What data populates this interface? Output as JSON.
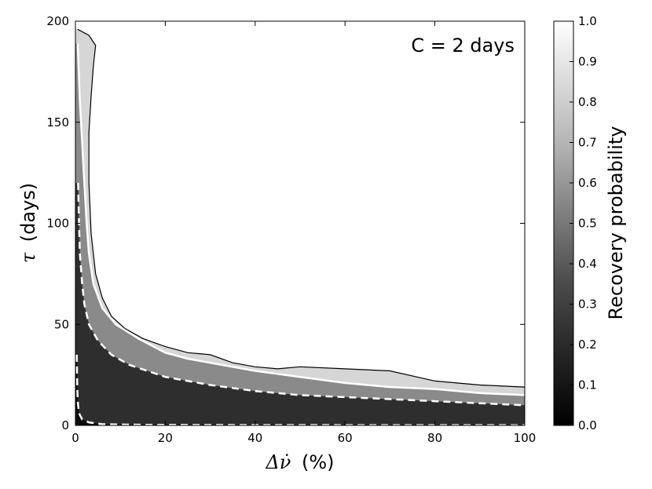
{
  "chart_data": {
    "type": "heatmap",
    "annotation": "C = 2 days",
    "xlabel_symbol": "Δν̇",
    "xlabel_unit": "(%)",
    "ylabel_symbol": "τ",
    "ylabel_unit": "(days)",
    "xlim": [
      0,
      100
    ],
    "ylim": [
      0,
      200
    ],
    "x_ticks": [
      "0",
      "20",
      "40",
      "60",
      "80",
      "100"
    ],
    "y_ticks": [
      "0",
      "50",
      "100",
      "150",
      "200"
    ],
    "colorbar": {
      "label": "Recovery probability",
      "range": [
        0.0,
        1.0
      ],
      "ticks": [
        "0.0",
        "0.1",
        "0.2",
        "0.3",
        "0.4",
        "0.5",
        "0.6",
        "0.7",
        "0.8",
        "0.9",
        "1.0"
      ],
      "colors": [
        "#000000",
        "#ffffff"
      ]
    },
    "contours": [
      {
        "level": 0.9,
        "style": "solid",
        "color": "#000000",
        "points": [
          [
            0.5,
            196
          ],
          [
            3,
            193
          ],
          [
            4.5,
            188
          ],
          [
            4,
            178
          ],
          [
            3.5,
            163
          ],
          [
            3,
            145
          ],
          [
            3,
            120
          ],
          [
            3.5,
            95
          ],
          [
            4.5,
            75
          ],
          [
            6,
            63
          ],
          [
            8,
            54
          ],
          [
            11,
            48
          ],
          [
            15,
            43
          ],
          [
            20,
            39
          ],
          [
            25,
            36
          ],
          [
            30,
            35
          ],
          [
            35,
            31
          ],
          [
            40,
            29
          ],
          [
            45,
            28
          ],
          [
            50,
            29
          ],
          [
            60,
            28
          ],
          [
            70,
            27
          ],
          [
            80,
            22
          ],
          [
            90,
            20
          ],
          [
            100,
            19
          ]
        ]
      },
      {
        "level": 0.8,
        "style": "solid",
        "color": "#ffffff",
        "points": [
          [
            0.5,
            189
          ],
          [
            1,
            160
          ],
          [
            1.5,
            140
          ],
          [
            2,
            120
          ],
          [
            2.5,
            100
          ],
          [
            3,
            85
          ],
          [
            4,
            70
          ],
          [
            6,
            58
          ],
          [
            9,
            50
          ],
          [
            14,
            43
          ],
          [
            20,
            36
          ],
          [
            25,
            33
          ],
          [
            30,
            31
          ],
          [
            40,
            27
          ],
          [
            50,
            24
          ],
          [
            60,
            21
          ],
          [
            70,
            19
          ],
          [
            80,
            18
          ],
          [
            90,
            16
          ],
          [
            100,
            15
          ]
        ]
      },
      {
        "level": 0.5,
        "style": "dashed",
        "color": "#ffffff",
        "points": [
          [
            0.6,
            120
          ],
          [
            0.8,
            100
          ],
          [
            1,
            85
          ],
          [
            1.5,
            70
          ],
          [
            2,
            60
          ],
          [
            3,
            50
          ],
          [
            5,
            42
          ],
          [
            8,
            35
          ],
          [
            12,
            30
          ],
          [
            20,
            24
          ],
          [
            30,
            20
          ],
          [
            40,
            17
          ],
          [
            50,
            15
          ],
          [
            60,
            14
          ],
          [
            70,
            13
          ],
          [
            80,
            12
          ],
          [
            90,
            11
          ],
          [
            100,
            10
          ]
        ]
      },
      {
        "level": 0.1,
        "style": "dashed",
        "color": "#ffffff",
        "points": [
          [
            0.3,
            35
          ],
          [
            0.4,
            20
          ],
          [
            0.5,
            12
          ],
          [
            0.8,
            6
          ],
          [
            1.5,
            3
          ],
          [
            3,
            1.5
          ],
          [
            6,
            0.6
          ],
          [
            15,
            0.3
          ],
          [
            40,
            0.2
          ],
          [
            100,
            0.1
          ]
        ]
      }
    ]
  }
}
